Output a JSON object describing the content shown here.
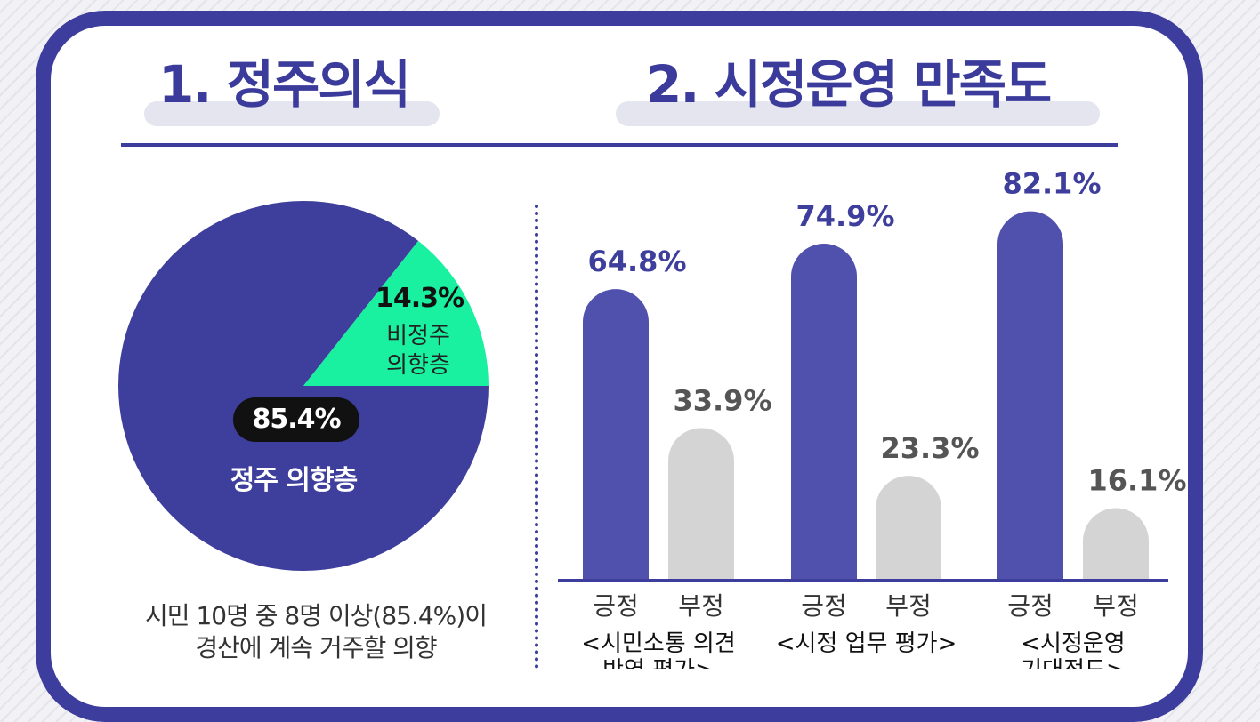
{
  "section1": {
    "title": "1. 정주의식",
    "summary_line1": "시민 10명 중 8명 이상(85.4%)이",
    "summary_line2": "경산에 계속 거주할 의향"
  },
  "section2": {
    "title": "2. 시정운영 만족도"
  },
  "chart_data": [
    {
      "type": "pie",
      "slices": [
        {
          "label": "정주 의향층",
          "value": 85.4,
          "display": "85.4%",
          "color": "#3e3e9c"
        },
        {
          "label": "비정주 의향층",
          "label_lines": [
            "비정주",
            "의향층"
          ],
          "value": 14.3,
          "display": "14.3%",
          "color": "#19f0a0"
        }
      ]
    },
    {
      "type": "bar",
      "categories": [
        "긍정",
        "부정"
      ],
      "groups": [
        {
          "label": "<시민소통 의견 반영 평가>",
          "label_lines": [
            "<시민소통 의견",
            "반영 평가>"
          ],
          "values": [
            64.8,
            33.9
          ],
          "displays": [
            "64.8%",
            "33.9%"
          ]
        },
        {
          "label": "<시정 업무 평가>",
          "label_lines": [
            "<시정 업무 평가>"
          ],
          "values": [
            74.9,
            23.3
          ],
          "displays": [
            "74.9%",
            "23.3%"
          ]
        },
        {
          "label": "<시정운영 기대정도>",
          "label_lines": [
            "<시정운영",
            "기대정도>"
          ],
          "values": [
            82.1,
            16.1
          ],
          "displays": [
            "82.1%",
            "16.1%"
          ]
        }
      ],
      "series_colors": {
        "긍정": "#5050ad",
        "부정": "#d4d4d4"
      },
      "label_colors": {
        "긍정": "#3e3e9c",
        "부정": "#555555"
      },
      "ylim": [
        0,
        100
      ]
    }
  ]
}
